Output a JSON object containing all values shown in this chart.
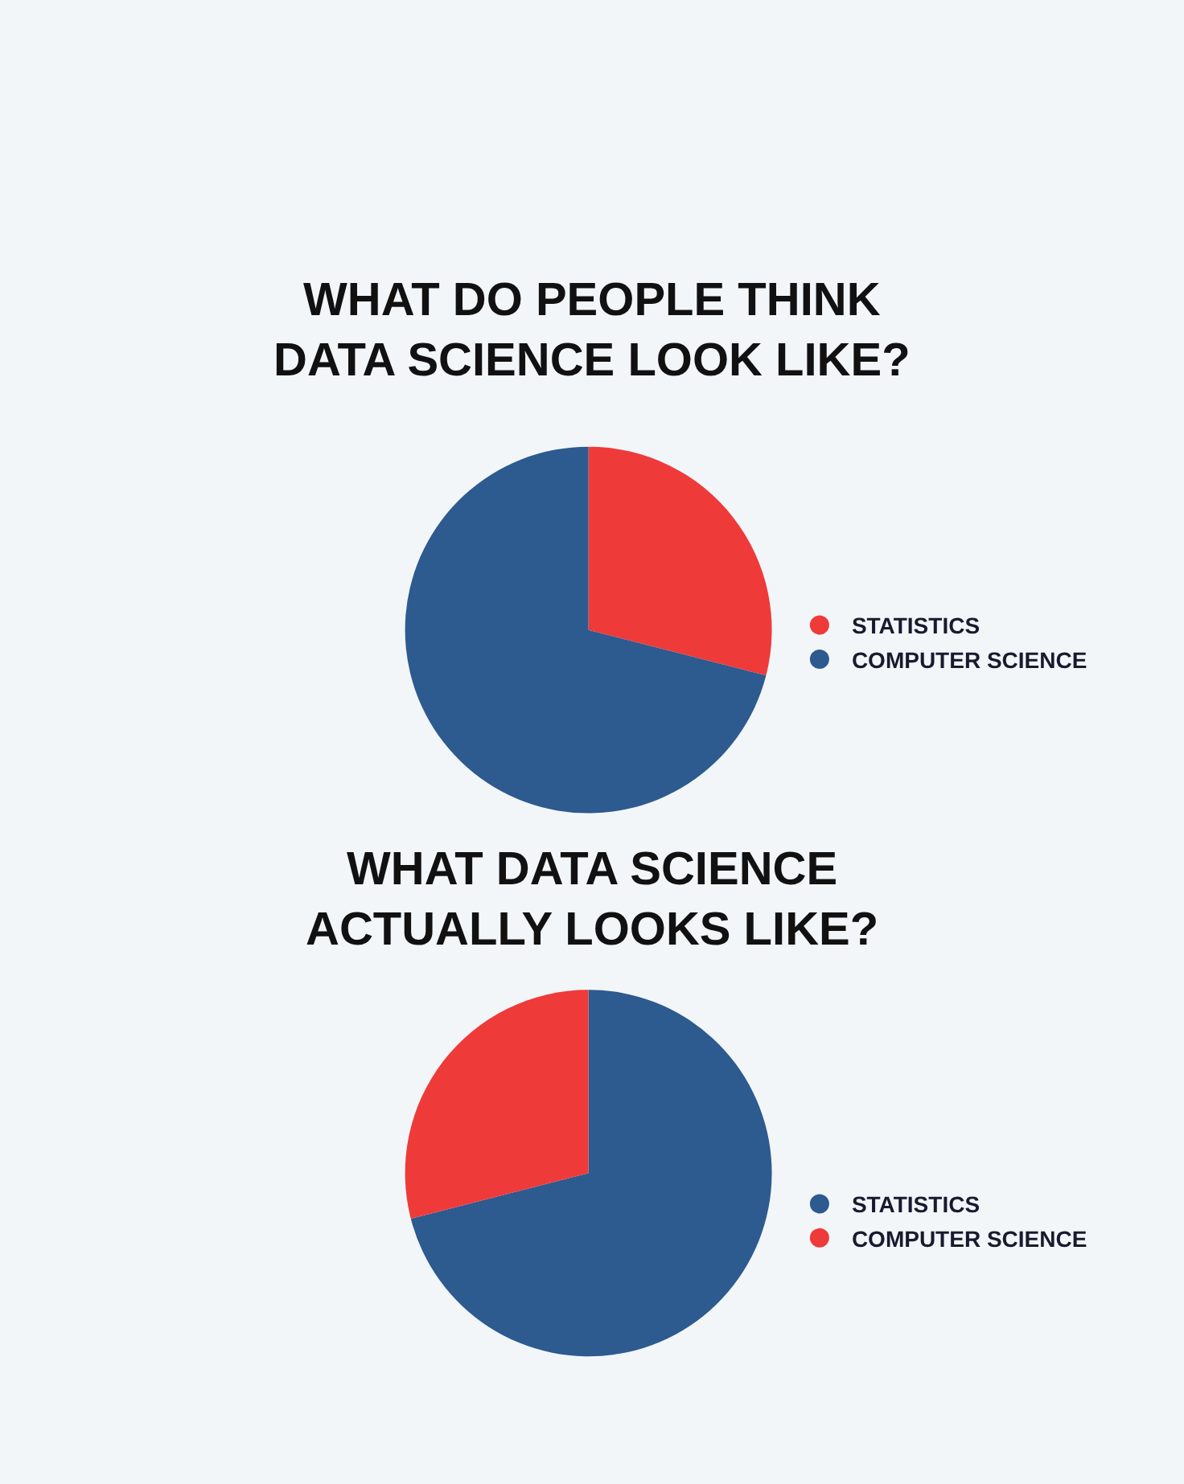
{
  "chart_data": [
    {
      "type": "pie",
      "title": "WHAT DO PEOPLE THINK\nDATA SCIENCE LOOK LIKE?",
      "categories": [
        "STATISTICS",
        "COMPUTER SCIENCE"
      ],
      "values": [
        29,
        71
      ],
      "colors": [
        "#ef3a3a",
        "#2d5a8f"
      ],
      "legend": "right"
    },
    {
      "type": "pie",
      "title": "WHAT DATA SCIENCE\nACTUALLY LOOKS LIKE?",
      "categories": [
        "STATISTICS",
        "COMPUTER SCIENCE"
      ],
      "values": [
        71,
        29
      ],
      "colors": [
        "#2d5a8f",
        "#ef3a3a"
      ],
      "legend": "right"
    }
  ]
}
